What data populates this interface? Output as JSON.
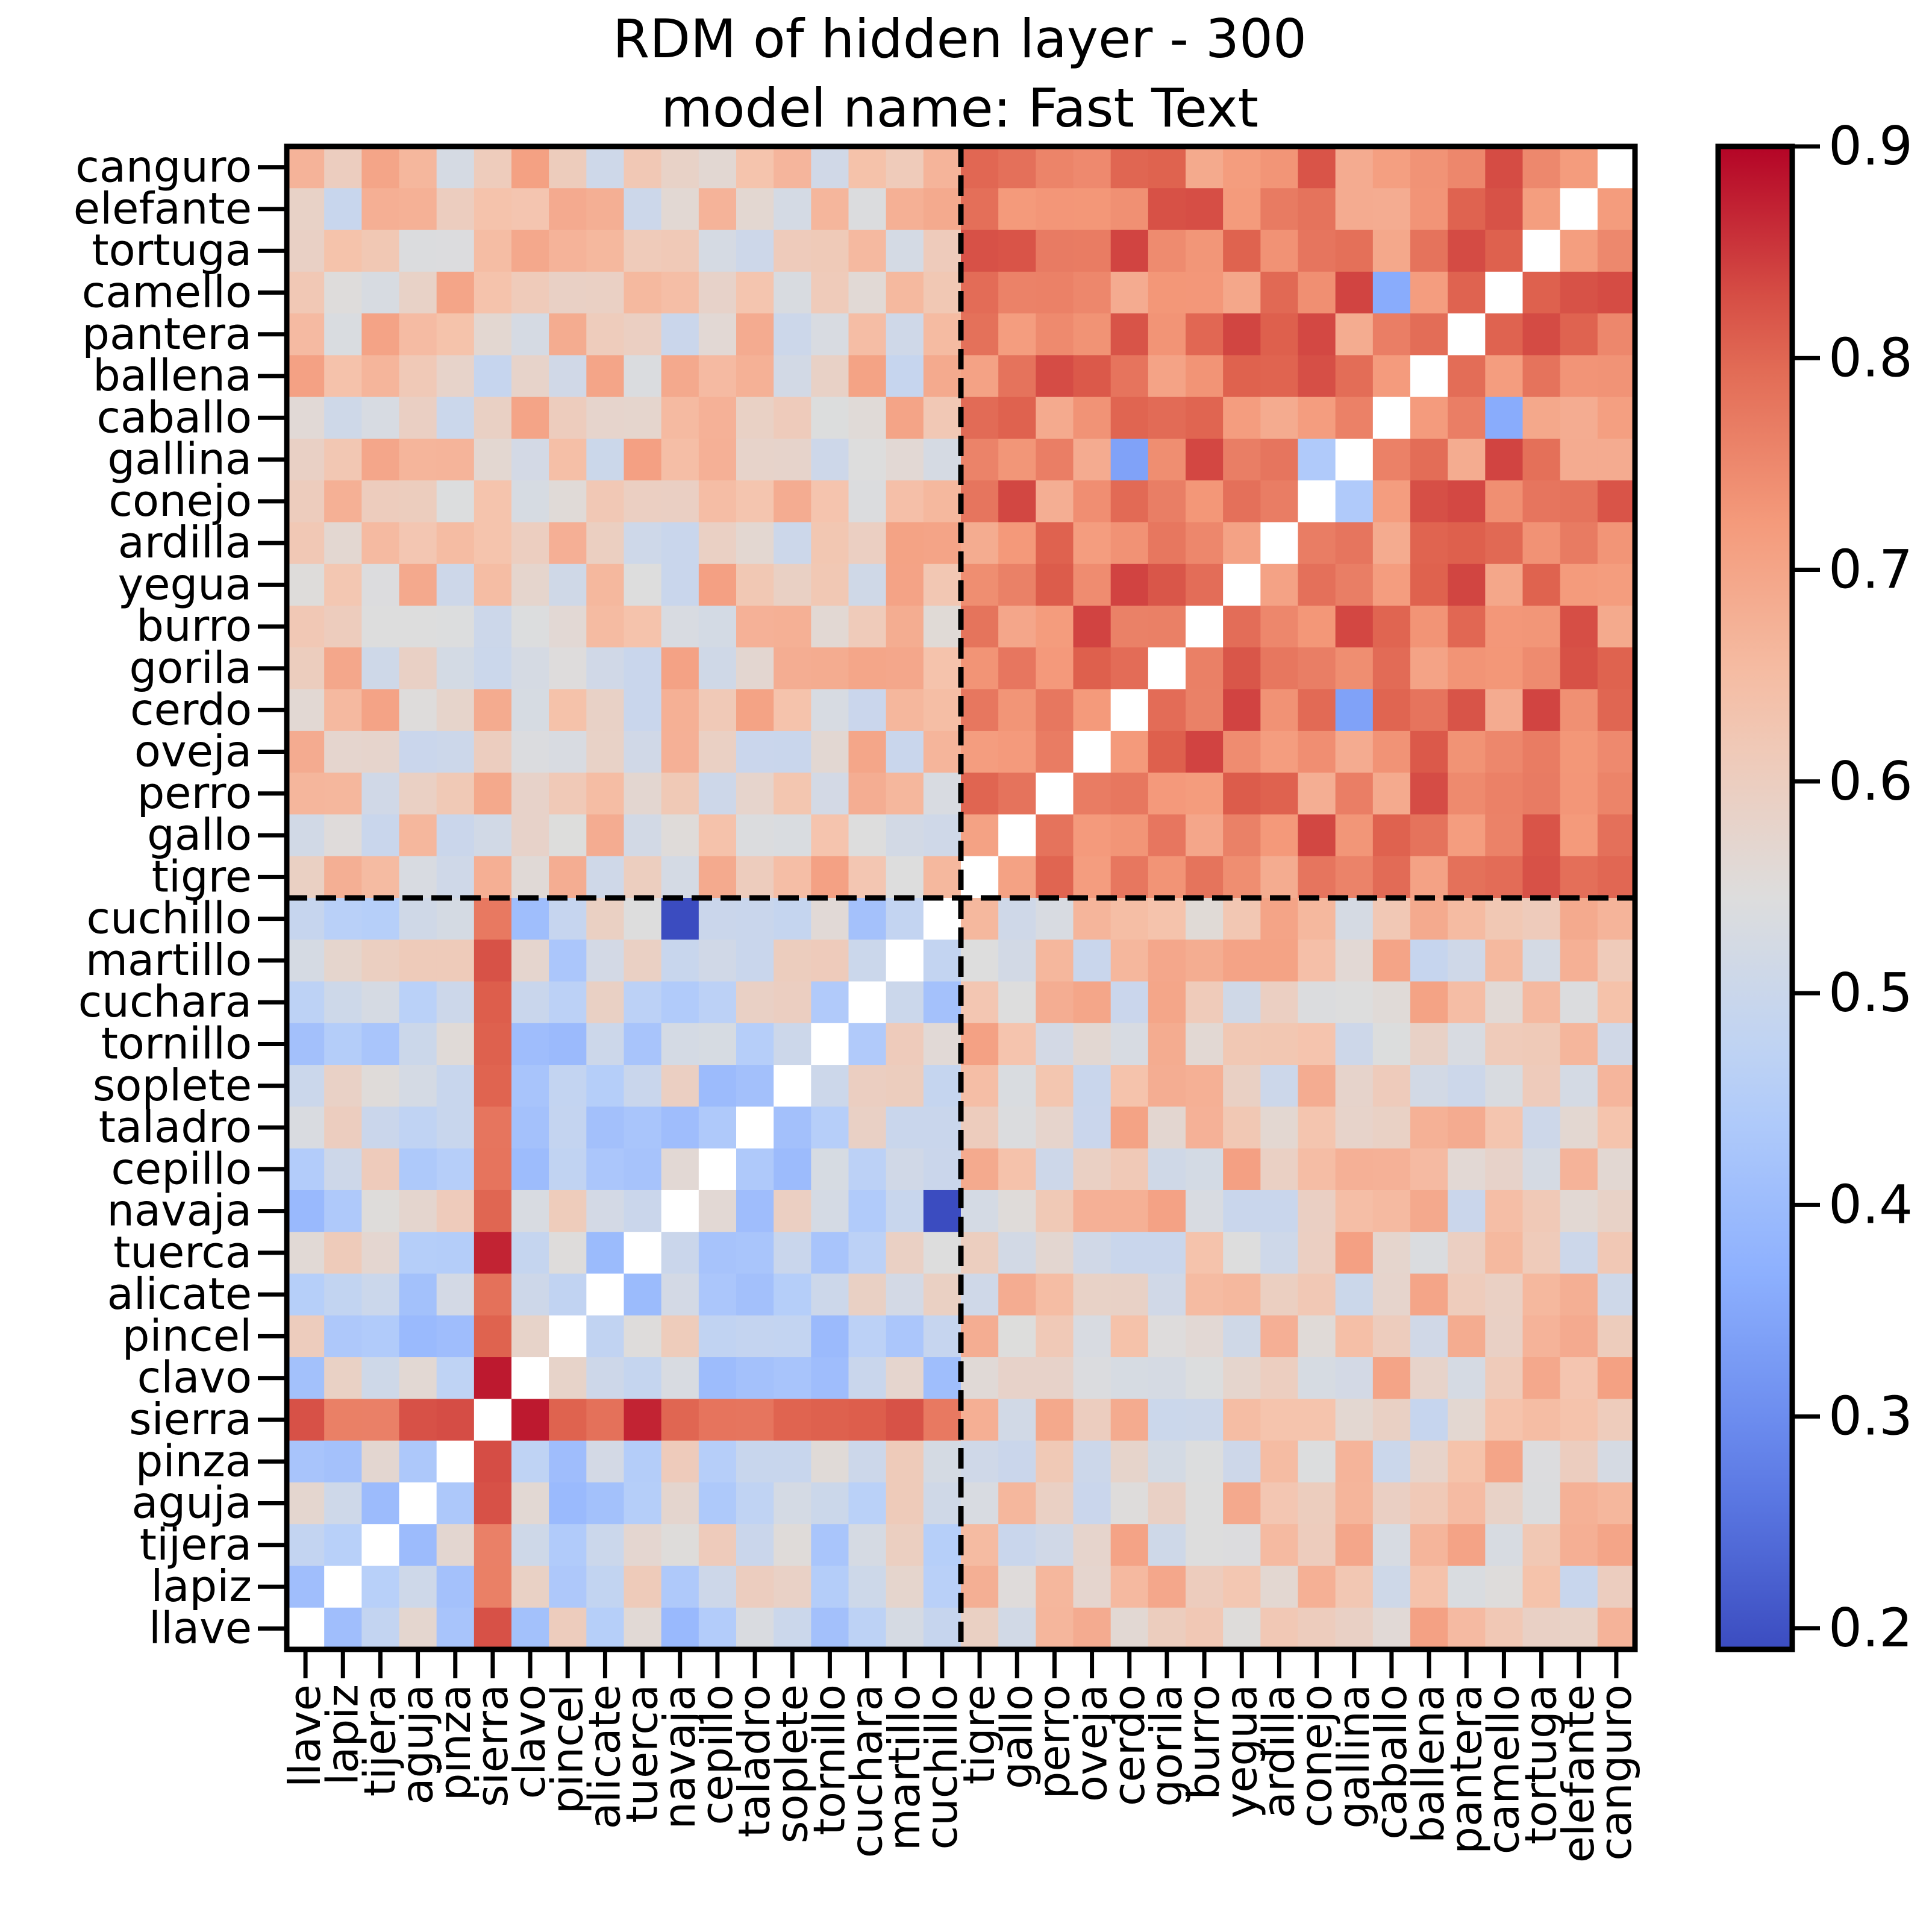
{
  "chart_data": {
    "type": "heatmap",
    "title": "RDM of hidden layer - 300",
    "subtitle": "model name: Fast Text",
    "x_labels": [
      "llave",
      "lapiz",
      "tijera",
      "aguja",
      "pinza",
      "sierra",
      "clavo",
      "pincel",
      "alicate",
      "tuerca",
      "navaja",
      "cepillo",
      "taladro",
      "soplete",
      "tornillo",
      "cuchara",
      "martillo",
      "cuchillo",
      "tigre",
      "gallo",
      "perro",
      "oveja",
      "cerdo",
      "gorila",
      "burro",
      "yegua",
      "ardilla",
      "conejo",
      "gallina",
      "caballo",
      "ballena",
      "pantera",
      "camello",
      "tortuga",
      "elefante",
      "canguro"
    ],
    "y_labels": [
      "canguro",
      "elefante",
      "tortuga",
      "camello",
      "pantera",
      "ballena",
      "caballo",
      "gallina",
      "conejo",
      "ardilla",
      "yegua",
      "burro",
      "gorila",
      "cerdo",
      "oveja",
      "perro",
      "gallo",
      "tigre",
      "cuchillo",
      "martillo",
      "cuchara",
      "tornillo",
      "soplete",
      "taladro",
      "cepillo",
      "navaja",
      "tuerca",
      "alicate",
      "pincel",
      "clavo",
      "sierra",
      "pinza",
      "aguja",
      "tijera",
      "lapiz",
      "llave"
    ],
    "colorbar": {
      "min": 0.19,
      "max": 0.9,
      "ticks": [
        "0.2",
        "0.3",
        "0.4",
        "0.5",
        "0.6",
        "0.7",
        "0.8",
        "0.9"
      ],
      "tick_values": [
        0.2,
        0.3,
        0.4,
        0.5,
        0.6,
        0.7,
        0.8,
        0.9
      ],
      "colormap": "coolwarm"
    },
    "group_divider_after_index": 18,
    "within_tools_mean": 0.5,
    "within_animals_mean": 0.76,
    "between_groups_mean": 0.6,
    "sierra_row_mean": 0.8,
    "notable_values": {
      "navaja-cuchillo": 0.19,
      "clavo-sierra": 0.88,
      "tuerca-sierra": 0.87,
      "pinza-sierra": 0.83,
      "cerdo-gallina": 0.34,
      "camello-caballo": 0.36,
      "conejo-gallina": 0.44
    }
  }
}
